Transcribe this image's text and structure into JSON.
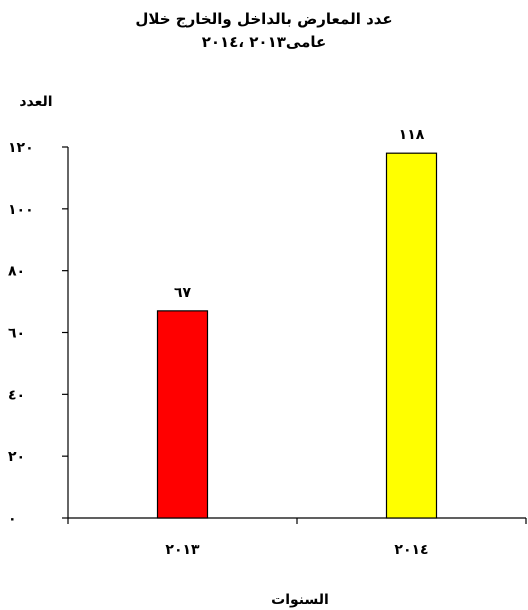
{
  "chart_data": {
    "type": "bar",
    "title_line1": "عدد المعارض بالداخل والخارج خلال",
    "title_line2": "عامى٢٠١٣ ،٢٠١٤",
    "ylabel": "العدد",
    "xlabel": "السنوات",
    "categories": [
      "٢٠١٣",
      "٢٠١٤"
    ],
    "values": [
      67,
      118
    ],
    "value_labels": [
      "٦٧",
      "١١٨"
    ],
    "ylim": [
      0,
      120
    ],
    "yticks": [
      0,
      20,
      40,
      60,
      80,
      100,
      120
    ],
    "ytick_labels": [
      "٠",
      "٢٠",
      "٤٠",
      "٦٠",
      "٨٠",
      "١٠٠",
      "١٢٠"
    ],
    "bar_colors": [
      "#ff0000",
      "#ffff00"
    ],
    "grid": false,
    "legend": "none"
  }
}
